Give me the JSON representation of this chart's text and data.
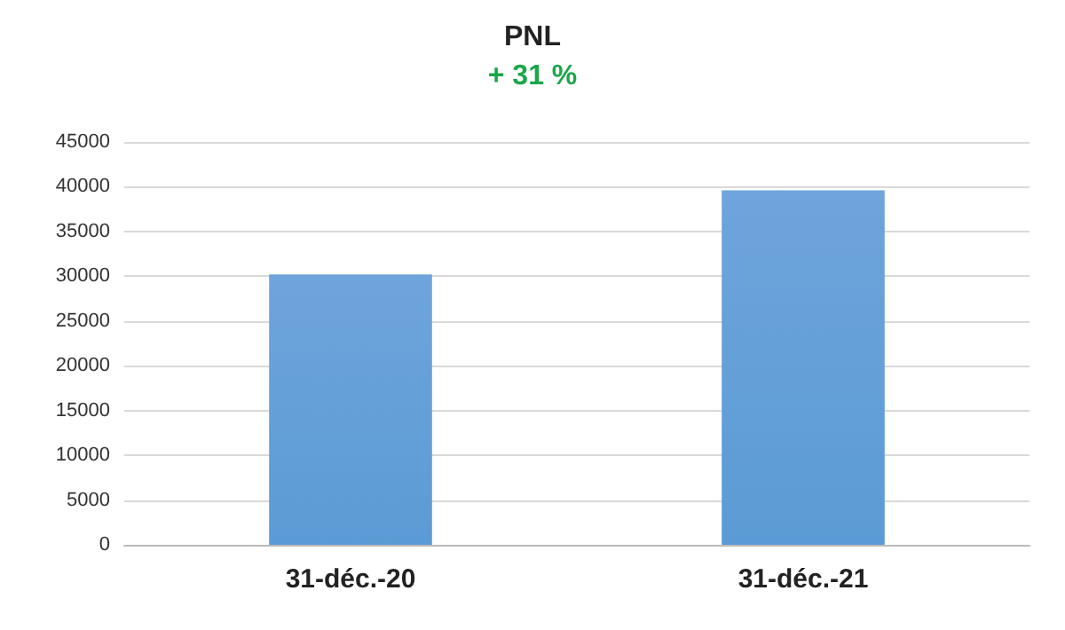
{
  "chart_data": {
    "type": "bar",
    "title": "PNL",
    "subtitle": "+ 31 %",
    "categories": [
      "31-déc.-20",
      "31-déc.-21"
    ],
    "values": [
      30200,
      39600
    ],
    "color": "#5b9bd5",
    "ylim": [
      0,
      45000
    ],
    "yticks": [
      0,
      5000,
      10000,
      15000,
      20000,
      25000,
      30000,
      35000,
      40000,
      45000
    ],
    "grid": "y"
  }
}
